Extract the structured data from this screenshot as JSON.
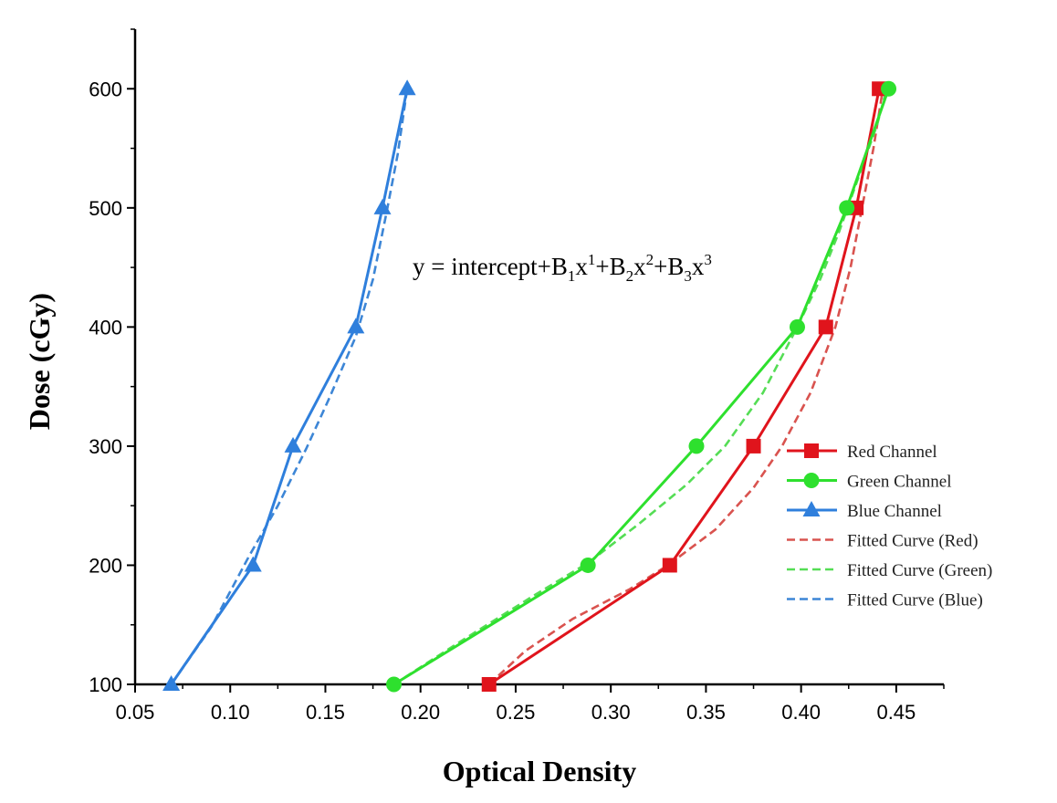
{
  "chart_data": {
    "type": "line",
    "xlabel": "Optical Density",
    "ylabel": "Dose (cGy)",
    "xlim": [
      0.05,
      0.475
    ],
    "ylim": [
      100,
      650
    ],
    "x_ticks": [
      "0.05",
      "0.10",
      "0.15",
      "0.20",
      "0.25",
      "0.30",
      "0.35",
      "0.40",
      "0.45"
    ],
    "y_ticks": [
      "100",
      "200",
      "300",
      "400",
      "500",
      "600"
    ],
    "grid": false,
    "legend_position": "right",
    "annotation": {
      "prefix": "y = intercept+B",
      "terms": [
        {
          "sub": "1",
          "base": "x",
          "sup": "1",
          "sep": "+B"
        },
        {
          "sub": "2",
          "base": "x",
          "sup": "2",
          "sep": "+B"
        },
        {
          "sub": "3",
          "base": "x",
          "sup": "3",
          "sep": ""
        }
      ]
    },
    "series": [
      {
        "name": "Red Channel",
        "color": "#e0141c",
        "marker": "square",
        "points": [
          [
            0.236,
            100
          ],
          [
            0.331,
            200
          ],
          [
            0.375,
            300
          ],
          [
            0.413,
            400
          ],
          [
            0.429,
            500
          ],
          [
            0.441,
            600
          ]
        ]
      },
      {
        "name": "Green Channel",
        "color": "#2ee02e",
        "marker": "circle",
        "points": [
          [
            0.186,
            100
          ],
          [
            0.288,
            200
          ],
          [
            0.345,
            300
          ],
          [
            0.398,
            400
          ],
          [
            0.424,
            500
          ],
          [
            0.446,
            600
          ]
        ]
      },
      {
        "name": "Blue Channel",
        "color": "#2f7fdc",
        "marker": "triangle",
        "points": [
          [
            0.069,
            100
          ],
          [
            0.112,
            200
          ],
          [
            0.133,
            300
          ],
          [
            0.166,
            400
          ],
          [
            0.18,
            500
          ],
          [
            0.193,
            600
          ]
        ]
      },
      {
        "name": "Fitted Curve (Red)",
        "color": "#d9534f",
        "dashed": true,
        "points": [
          [
            0.236,
            100
          ],
          [
            0.255,
            128
          ],
          [
            0.28,
            155
          ],
          [
            0.31,
            180
          ],
          [
            0.33,
            200
          ],
          [
            0.355,
            230
          ],
          [
            0.375,
            265
          ],
          [
            0.39,
            300
          ],
          [
            0.405,
            345
          ],
          [
            0.418,
            400
          ],
          [
            0.426,
            450
          ],
          [
            0.432,
            500
          ],
          [
            0.438,
            550
          ],
          [
            0.443,
            600
          ]
        ]
      },
      {
        "name": "Fitted Curve (Green)",
        "color": "#55dd55",
        "dashed": true,
        "points": [
          [
            0.186,
            100
          ],
          [
            0.22,
            135
          ],
          [
            0.26,
            175
          ],
          [
            0.288,
            202
          ],
          [
            0.315,
            235
          ],
          [
            0.34,
            268
          ],
          [
            0.36,
            300
          ],
          [
            0.38,
            345
          ],
          [
            0.398,
            400
          ],
          [
            0.41,
            440
          ],
          [
            0.42,
            480
          ],
          [
            0.43,
            525
          ],
          [
            0.44,
            570
          ],
          [
            0.445,
            600
          ]
        ]
      },
      {
        "name": "Fitted Curve (Blue)",
        "color": "#3d86d6",
        "dashed": true,
        "points": [
          [
            0.069,
            100
          ],
          [
            0.09,
            148
          ],
          [
            0.11,
            208
          ],
          [
            0.125,
            250
          ],
          [
            0.14,
            298
          ],
          [
            0.152,
            340
          ],
          [
            0.166,
            392
          ],
          [
            0.175,
            440
          ],
          [
            0.182,
            495
          ],
          [
            0.188,
            545
          ],
          [
            0.193,
            600
          ]
        ]
      }
    ]
  }
}
